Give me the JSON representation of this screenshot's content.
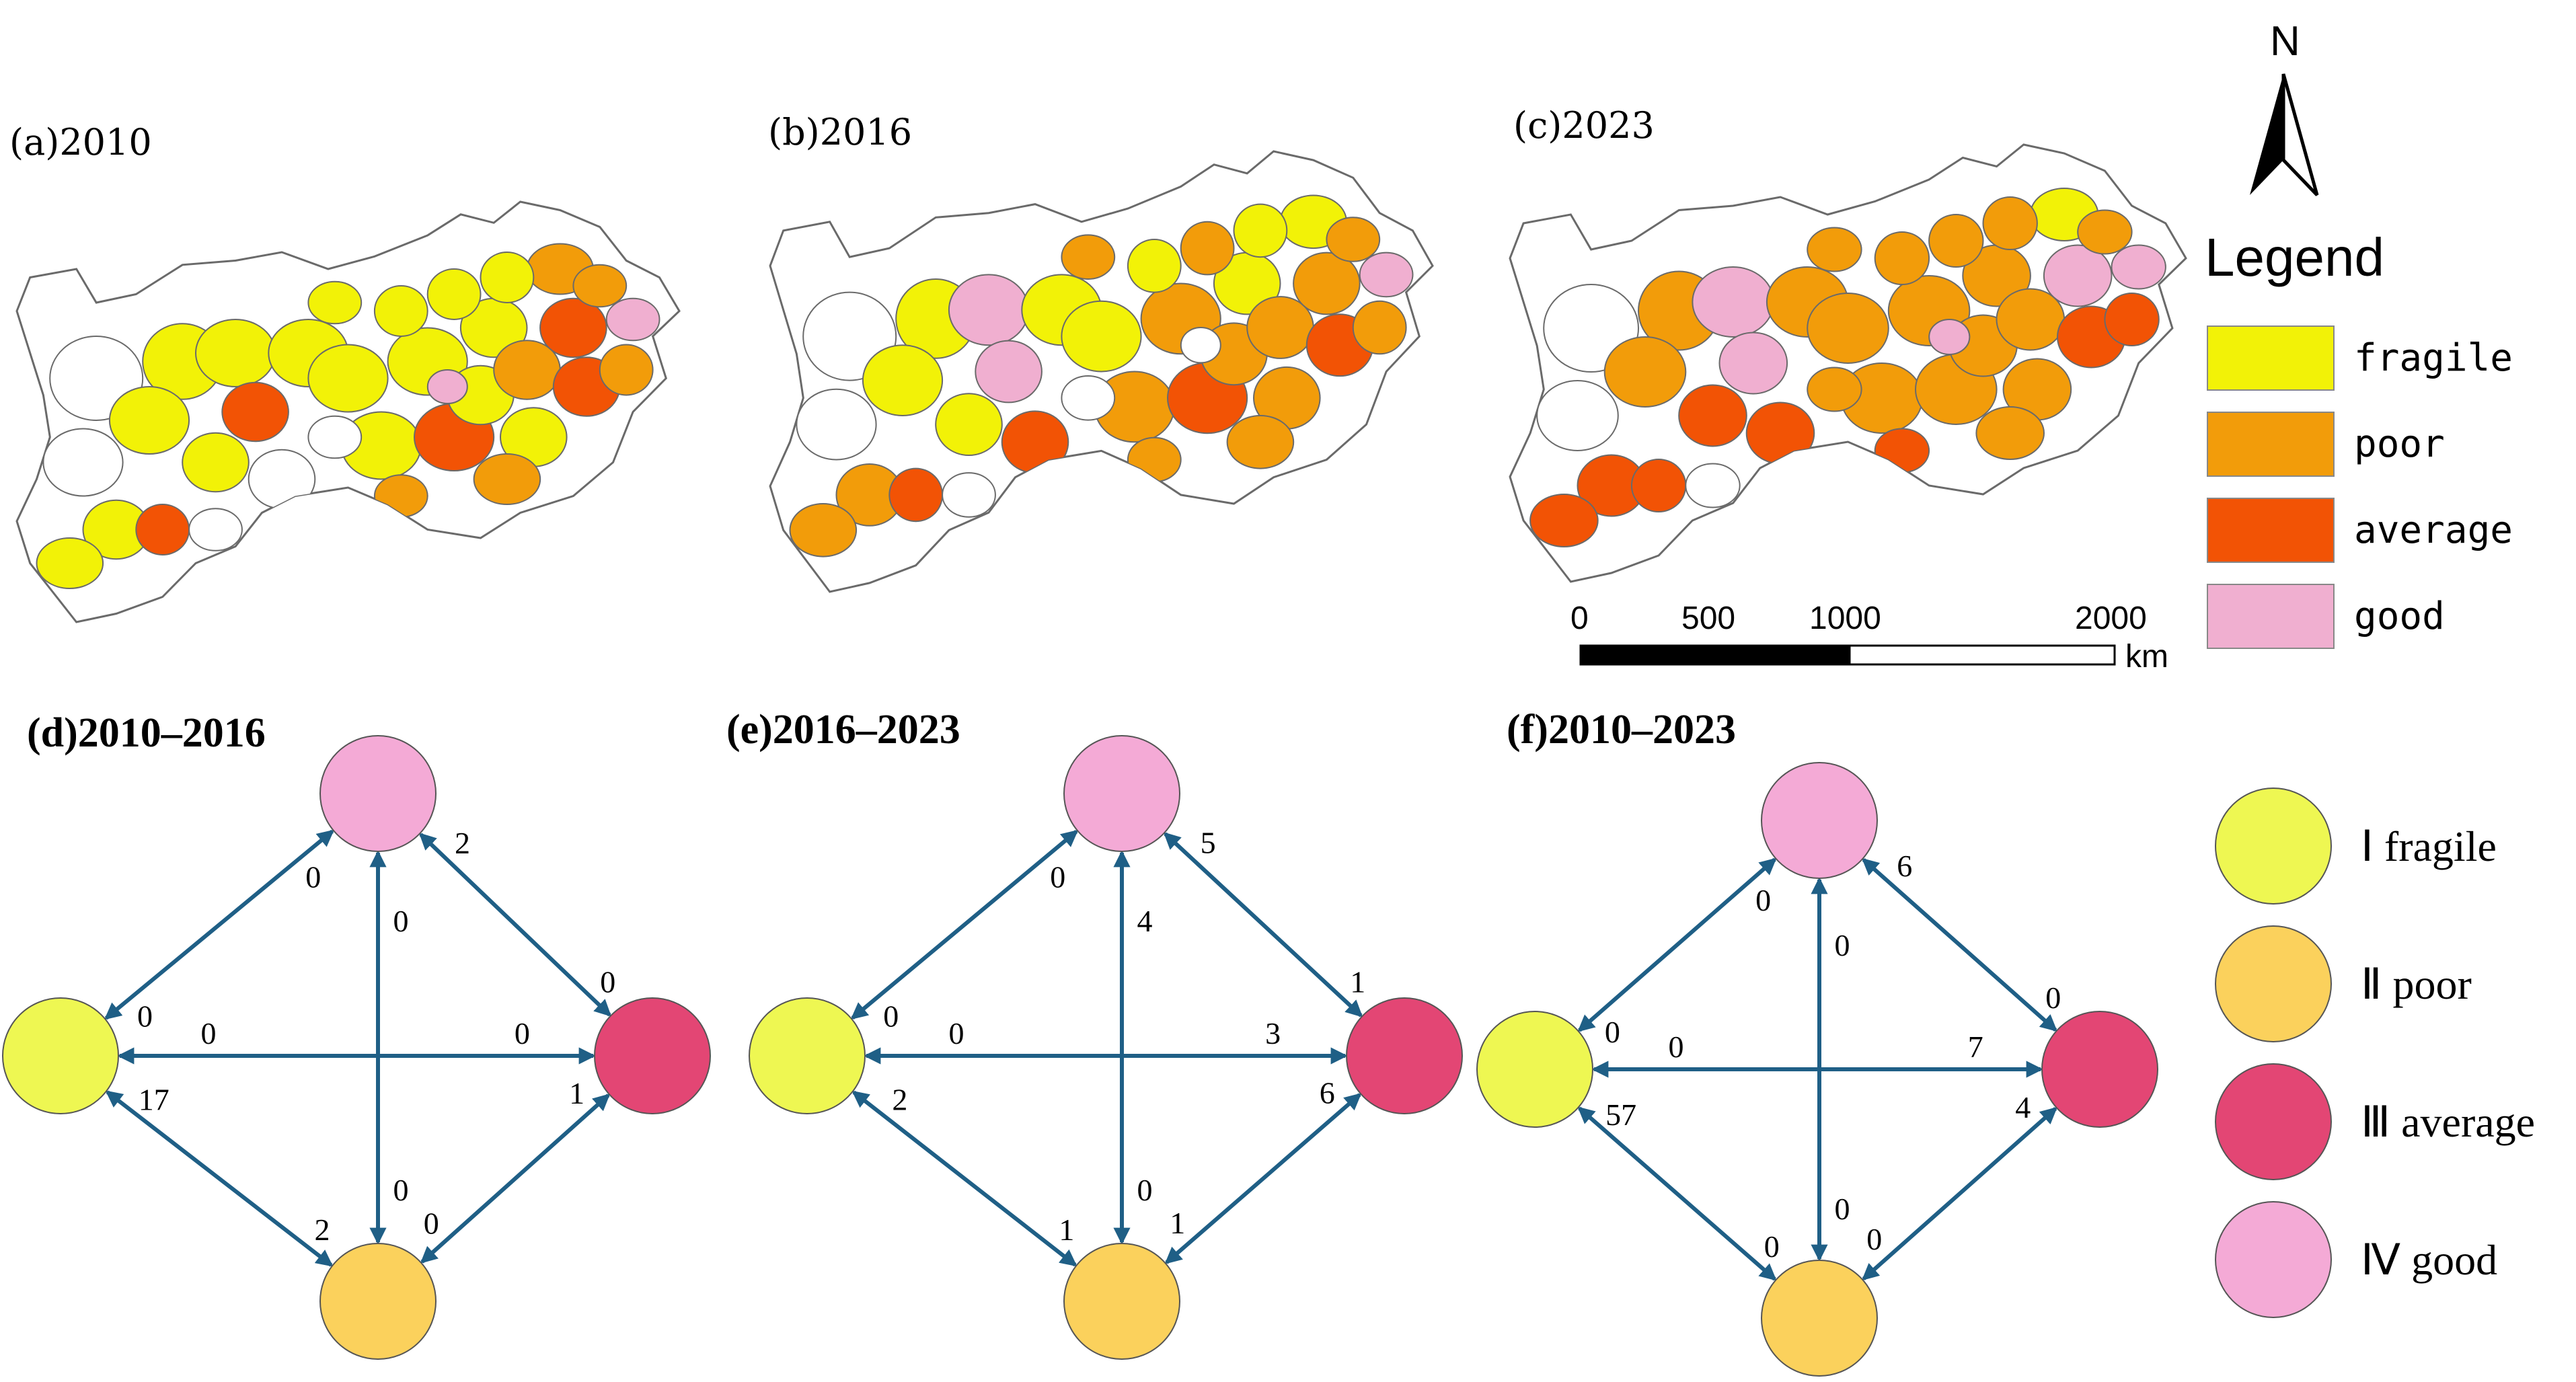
{
  "colors": {
    "fragile": "#f2f207",
    "poor": "#f29c0a",
    "average": "#f25305",
    "good": "#f0afd0",
    "blank": "#ffffff",
    "node_fragile": "#eef752",
    "node_poor": "#fbd15c",
    "node_average": "#e34674",
    "node_good": "#f4aad6",
    "arrow": "#1f5f86"
  },
  "maps": [
    {
      "label": "(a)2010"
    },
    {
      "label": "(b)2016"
    },
    {
      "label": "(c)2023"
    }
  ],
  "north": {
    "letter": "N"
  },
  "legend": {
    "title": "Legend",
    "items": [
      {
        "key": "fragile",
        "label": "fragile"
      },
      {
        "key": "poor",
        "label": "poor"
      },
      {
        "key": "average",
        "label": "average"
      },
      {
        "key": "good",
        "label": "good"
      }
    ]
  },
  "scale_bar": {
    "ticks": [
      "0",
      "500",
      "1000",
      "2000"
    ],
    "unit": "km"
  },
  "networks": [
    {
      "label": "(d)2010–2016",
      "edge_values": {
        "good_to_fragile": "0",
        "fragile_to_good": "0",
        "good_to_average": "2",
        "average_to_good": "0",
        "good_to_poor": "0",
        "poor_to_good": "0",
        "fragile_to_average": "0",
        "average_to_fragile": "0",
        "fragile_to_poor": "17",
        "poor_to_fragile": "2",
        "poor_to_average": "0",
        "average_to_poor": "1"
      }
    },
    {
      "label": "(e)2016–2023",
      "edge_values": {
        "good_to_fragile": "0",
        "fragile_to_good": "0",
        "good_to_average": "5",
        "average_to_good": "1",
        "good_to_poor": "4",
        "poor_to_good": "0",
        "fragile_to_average": "0",
        "average_to_fragile": "3",
        "fragile_to_poor": "2",
        "poor_to_fragile": "1",
        "poor_to_average": "1",
        "average_to_poor": "6"
      }
    },
    {
      "label": "(f)2010–2023",
      "edge_values": {
        "good_to_fragile": "0",
        "fragile_to_good": "0",
        "good_to_average": "6",
        "average_to_good": "0",
        "good_to_poor": "0",
        "poor_to_good": "0",
        "fragile_to_average": "0",
        "average_to_fragile": "7",
        "fragile_to_poor": "57",
        "poor_to_fragile": "0",
        "poor_to_average": "0",
        "average_to_poor": "4"
      }
    }
  ],
  "node_legend": [
    {
      "key": "fragile",
      "label": "Ⅰ fragile"
    },
    {
      "key": "poor",
      "label": "Ⅱ poor"
    },
    {
      "key": "average",
      "label": "Ⅲ average"
    },
    {
      "key": "good",
      "label": "Ⅳ good"
    }
  ]
}
